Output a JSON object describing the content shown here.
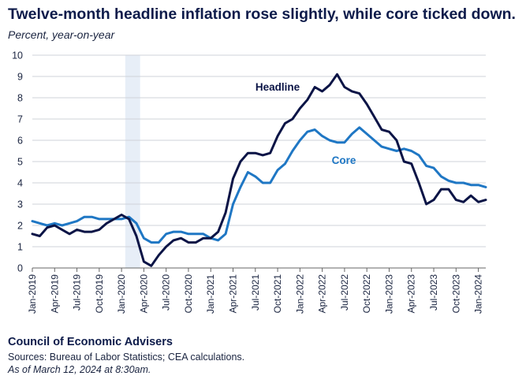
{
  "title": "Twelve-month headline inflation rose slightly, while core ticked down.",
  "subtitle": "Percent, year-on-year",
  "footer": {
    "organization": "Council of Economic Advisers",
    "sources": "Sources: Bureau of Labor Statistics; CEA calculations.",
    "timestamp": "As of March 12, 2024 at 8:30am."
  },
  "chart_data": {
    "type": "line",
    "title": "Twelve-month headline inflation rose slightly, while core ticked down.",
    "ylabel": "Percent, year-on-year",
    "xlabel": "",
    "ylim": [
      0,
      10
    ],
    "yticks": [
      "0",
      "1",
      "2",
      "3",
      "4",
      "5",
      "6",
      "7",
      "8",
      "9",
      "10"
    ],
    "xtick_labels": [
      "Jan-2019",
      "Apr-2019",
      "Jul-2019",
      "Oct-2019",
      "Jan-2020",
      "Apr-2020",
      "Jul-2020",
      "Oct-2020",
      "Jan-2021",
      "Apr-2021",
      "Jul-2021",
      "Oct-2021",
      "Jan-2022",
      "Apr-2022",
      "Jul-2022",
      "Oct-2022",
      "Jan-2023",
      "Apr-2023",
      "Jul-2023",
      "Oct-2023",
      "Jan-2024"
    ],
    "recession_shading": {
      "start_month_index": 13,
      "end_month_index": 15
    },
    "grid": true,
    "series": [
      {
        "name": "Headline",
        "color": "#0b1446",
        "values": [
          1.6,
          1.5,
          1.9,
          2.0,
          1.8,
          1.6,
          1.8,
          1.7,
          1.7,
          1.8,
          2.1,
          2.3,
          2.5,
          2.3,
          1.5,
          0.3,
          0.1,
          0.6,
          1.0,
          1.3,
          1.4,
          1.2,
          1.2,
          1.4,
          1.4,
          1.7,
          2.6,
          4.2,
          5.0,
          5.4,
          5.4,
          5.3,
          5.4,
          6.2,
          6.8,
          7.0,
          7.5,
          7.9,
          8.5,
          8.3,
          8.6,
          9.1,
          8.5,
          8.3,
          8.2,
          7.7,
          7.1,
          6.5,
          6.4,
          6.0,
          5.0,
          4.9,
          4.0,
          3.0,
          3.2,
          3.7,
          3.7,
          3.2,
          3.1,
          3.4,
          3.1,
          3.2
        ]
      },
      {
        "name": "Core",
        "color": "#1f77c4",
        "values": [
          2.2,
          2.1,
          2.0,
          2.1,
          2.0,
          2.1,
          2.2,
          2.4,
          2.4,
          2.3,
          2.3,
          2.3,
          2.3,
          2.4,
          2.1,
          1.4,
          1.2,
          1.2,
          1.6,
          1.7,
          1.7,
          1.6,
          1.6,
          1.6,
          1.4,
          1.3,
          1.6,
          3.0,
          3.8,
          4.5,
          4.3,
          4.0,
          4.0,
          4.6,
          4.9,
          5.5,
          6.0,
          6.4,
          6.5,
          6.2,
          6.0,
          5.9,
          5.9,
          6.3,
          6.6,
          6.3,
          6.0,
          5.7,
          5.6,
          5.5,
          5.6,
          5.5,
          5.3,
          4.8,
          4.7,
          4.3,
          4.1,
          4.0,
          4.0,
          3.9,
          3.9,
          3.8
        ]
      }
    ],
    "annotations": [
      {
        "text": "Headline",
        "series": "Headline"
      },
      {
        "text": "Core",
        "series": "Core"
      }
    ]
  }
}
